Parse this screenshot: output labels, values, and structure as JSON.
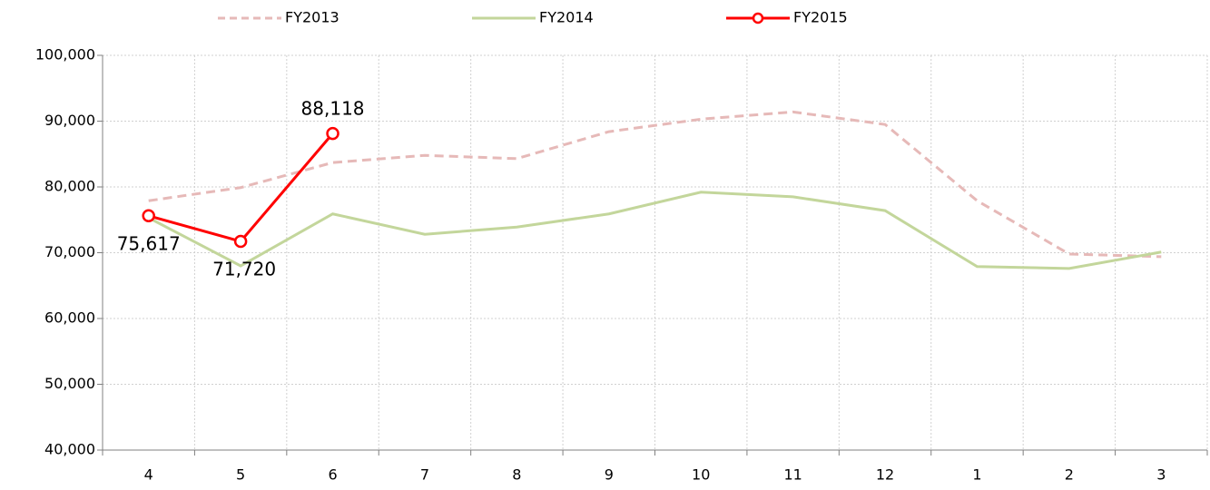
{
  "chart_data": {
    "type": "line",
    "categories": [
      "4",
      "5",
      "6",
      "7",
      "8",
      "9",
      "10",
      "11",
      "12",
      "1",
      "2",
      "3"
    ],
    "series": [
      {
        "name": "FY2013",
        "color": "#e6b9b8",
        "line_style": "dashed",
        "markers": false,
        "values": [
          77900,
          79900,
          83700,
          84800,
          84300,
          88400,
          90300,
          91400,
          89500,
          77900,
          69800,
          69400
        ]
      },
      {
        "name": "FY2014",
        "color": "#c3d69b",
        "line_style": "solid",
        "markers": false,
        "values": [
          75300,
          68000,
          75900,
          72800,
          73900,
          75900,
          79200,
          78500,
          76400,
          67900,
          67600,
          70100
        ]
      },
      {
        "name": "FY2015",
        "color": "#ff0000",
        "line_style": "solid",
        "markers": true,
        "values": [
          75617,
          71720,
          88118,
          null,
          null,
          null,
          null,
          null,
          null,
          null,
          null,
          null
        ],
        "value_labels": [
          "75,617",
          "71,720",
          "88,118",
          null,
          null,
          null,
          null,
          null,
          null,
          null,
          null,
          null
        ]
      }
    ],
    "ylim": [
      40000,
      100000
    ],
    "yticks": [
      {
        "value": 40000,
        "label": "40,000"
      },
      {
        "value": 50000,
        "label": "50,000"
      },
      {
        "value": 60000,
        "label": "60,000"
      },
      {
        "value": 70000,
        "label": "70,000"
      },
      {
        "value": 80000,
        "label": "80,000"
      },
      {
        "value": 90000,
        "label": "90,000"
      },
      {
        "value": 100000,
        "label": "100,000"
      }
    ],
    "grid": true,
    "legend": "top"
  }
}
